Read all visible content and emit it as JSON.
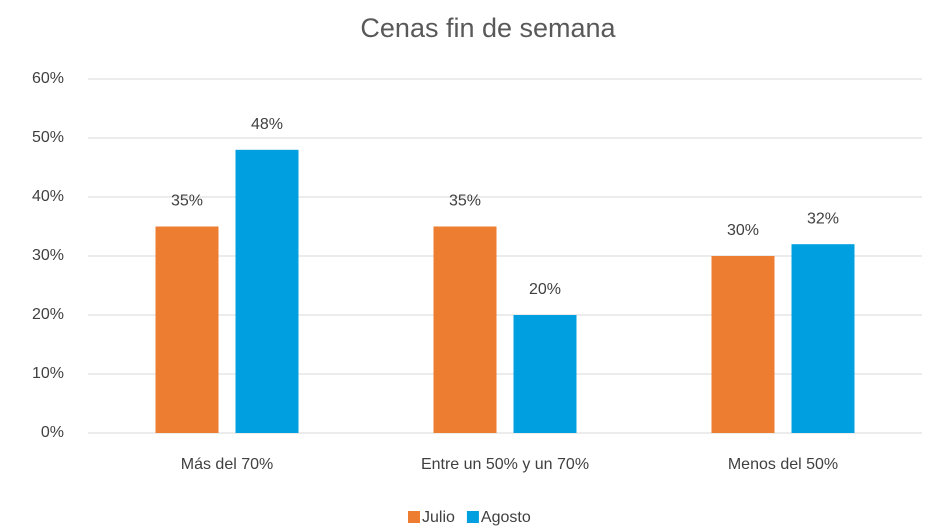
{
  "chart_data": {
    "type": "bar",
    "title": "Cenas fin de semana",
    "categories": [
      "Más del 70%",
      "Entre un 50% y un 70%",
      "Menos del 50%"
    ],
    "series": [
      {
        "name": "Julio",
        "color": "#ed7d31",
        "values": [
          35,
          35,
          30
        ],
        "value_labels": [
          "35%",
          "35%",
          "30%"
        ]
      },
      {
        "name": "Agosto",
        "color": "#00a0e0",
        "values": [
          48,
          20,
          32
        ],
        "value_labels": [
          "48%",
          "20%",
          "32%"
        ]
      }
    ],
    "ylim": [
      0,
      60
    ],
    "yticks": [
      {
        "value": 0,
        "label": "0%"
      },
      {
        "value": 10,
        "label": "10%"
      },
      {
        "value": 20,
        "label": "20%"
      },
      {
        "value": 30,
        "label": "30%"
      },
      {
        "value": 40,
        "label": "40%"
      },
      {
        "value": 50,
        "label": "50%"
      },
      {
        "value": 60,
        "label": "60%"
      }
    ],
    "grid": true,
    "legend": "bottom"
  }
}
